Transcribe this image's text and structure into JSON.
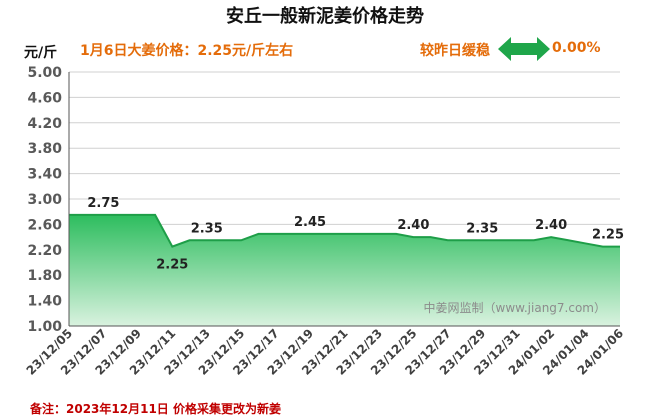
{
  "header": {
    "title": "安丘一般新泥姜价格走势",
    "unit": "元/斤",
    "price_note": "1月6日大姜价格：2.25元/斤左右",
    "change_label": "较昨日缓稳",
    "change_value": "0.00%",
    "change_icon": "left-right-arrow-icon"
  },
  "footnote": "备注：2023年12月11日 价格采集更改为新姜",
  "watermark": "中姜网监制（www.jiang7.com）",
  "colors": {
    "area_top": "#2dbd5e",
    "area_bottom": "#d9f2df",
    "line": "#1e9e48",
    "title_text": "#111111",
    "accent_text": "#e46c0a",
    "note_text": "#c00000",
    "arrow": "#1fa64a"
  },
  "chart_data": {
    "type": "area",
    "ylim": [
      1.0,
      5.0
    ],
    "yticks": [
      "5.00",
      "4.60",
      "4.20",
      "3.80",
      "3.40",
      "3.00",
      "2.60",
      "2.20",
      "1.80",
      "1.40",
      "1.00"
    ],
    "grid": true,
    "x_tick_labels": [
      "23/12/05",
      "23/12/07",
      "23/12/09",
      "23/12/11",
      "23/12/13",
      "23/12/15",
      "23/12/17",
      "23/12/19",
      "23/12/21",
      "23/12/23",
      "23/12/25",
      "23/12/27",
      "23/12/29",
      "23/12/31",
      "24/01/02",
      "24/01/04",
      "24/01/06"
    ],
    "x": [
      "23/12/05",
      "23/12/06",
      "23/12/07",
      "23/12/08",
      "23/12/09",
      "23/12/10",
      "23/12/11",
      "23/12/12",
      "23/12/13",
      "23/12/14",
      "23/12/15",
      "23/12/16",
      "23/12/17",
      "23/12/18",
      "23/12/19",
      "23/12/20",
      "23/12/21",
      "23/12/22",
      "23/12/23",
      "23/12/24",
      "23/12/25",
      "23/12/26",
      "23/12/27",
      "23/12/28",
      "23/12/29",
      "23/12/30",
      "23/12/31",
      "24/01/01",
      "24/01/02",
      "24/01/03",
      "24/01/04",
      "24/01/05",
      "24/01/06"
    ],
    "values": [
      2.75,
      2.75,
      2.75,
      2.75,
      2.75,
      2.75,
      2.25,
      2.35,
      2.35,
      2.35,
      2.35,
      2.45,
      2.45,
      2.45,
      2.45,
      2.45,
      2.45,
      2.45,
      2.45,
      2.45,
      2.4,
      2.4,
      2.35,
      2.35,
      2.35,
      2.35,
      2.35,
      2.35,
      2.4,
      2.35,
      2.3,
      2.25,
      2.25
    ],
    "data_labels": [
      {
        "x": "23/12/07",
        "text": "2.75"
      },
      {
        "x": "23/12/11",
        "text": "2.25"
      },
      {
        "x": "23/12/13",
        "text": "2.35"
      },
      {
        "x": "23/12/19",
        "text": "2.45"
      },
      {
        "x": "23/12/25",
        "text": "2.40"
      },
      {
        "x": "23/12/29",
        "text": "2.35"
      },
      {
        "x": "24/01/02",
        "text": "2.40"
      },
      {
        "x": "24/01/06",
        "text": "2.25"
      }
    ]
  }
}
